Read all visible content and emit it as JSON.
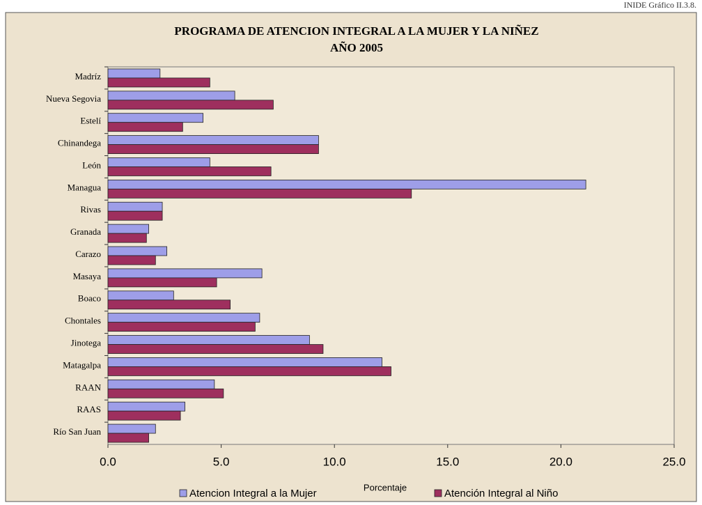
{
  "chart_data": {
    "type": "bar",
    "orientation": "horizontal",
    "note": "INIDE Gráfico II.3.8.",
    "title": [
      "PROGRAMA DE ATENCION INTEGRAL A LA MUJER Y LA NIÑEZ",
      "AÑO 2005"
    ],
    "x_label": "Porcentaje",
    "categories": [
      "Madríz",
      "Nueva Segovia",
      "Estelí",
      "Chinandega",
      "León",
      "Managua",
      "Rivas",
      "Granada",
      "Carazo",
      "Masaya",
      "Boaco",
      "Chontales",
      "Jinotega",
      "Matagalpa",
      "RAAN",
      "RAAS",
      "Río San Juan"
    ],
    "series": [
      {
        "name": "Atencion Integral a la Mujer",
        "color": "#9e9ee8",
        "values": [
          2.3,
          5.6,
          4.2,
          9.3,
          4.5,
          21.1,
          2.4,
          1.8,
          2.6,
          6.8,
          2.9,
          6.7,
          8.9,
          12.1,
          4.7,
          3.4,
          2.1
        ]
      },
      {
        "name": "Atención Integral al Niño",
        "color": "#9e2f5e",
        "values": [
          4.5,
          7.3,
          3.3,
          9.3,
          7.2,
          13.4,
          2.4,
          1.7,
          2.1,
          4.8,
          5.4,
          6.5,
          9.5,
          12.5,
          5.1,
          3.2,
          1.8
        ]
      }
    ],
    "xlim": [
      0,
      25
    ],
    "xticks": [
      {
        "value": 0,
        "label": "0.0"
      },
      {
        "value": 5,
        "label": "5.0"
      },
      {
        "value": 10,
        "label": "10.0"
      },
      {
        "value": 15,
        "label": "15.0"
      },
      {
        "value": 20,
        "label": "20.0"
      },
      {
        "value": 25,
        "label": "25.0"
      }
    ],
    "legend": "bottom"
  }
}
